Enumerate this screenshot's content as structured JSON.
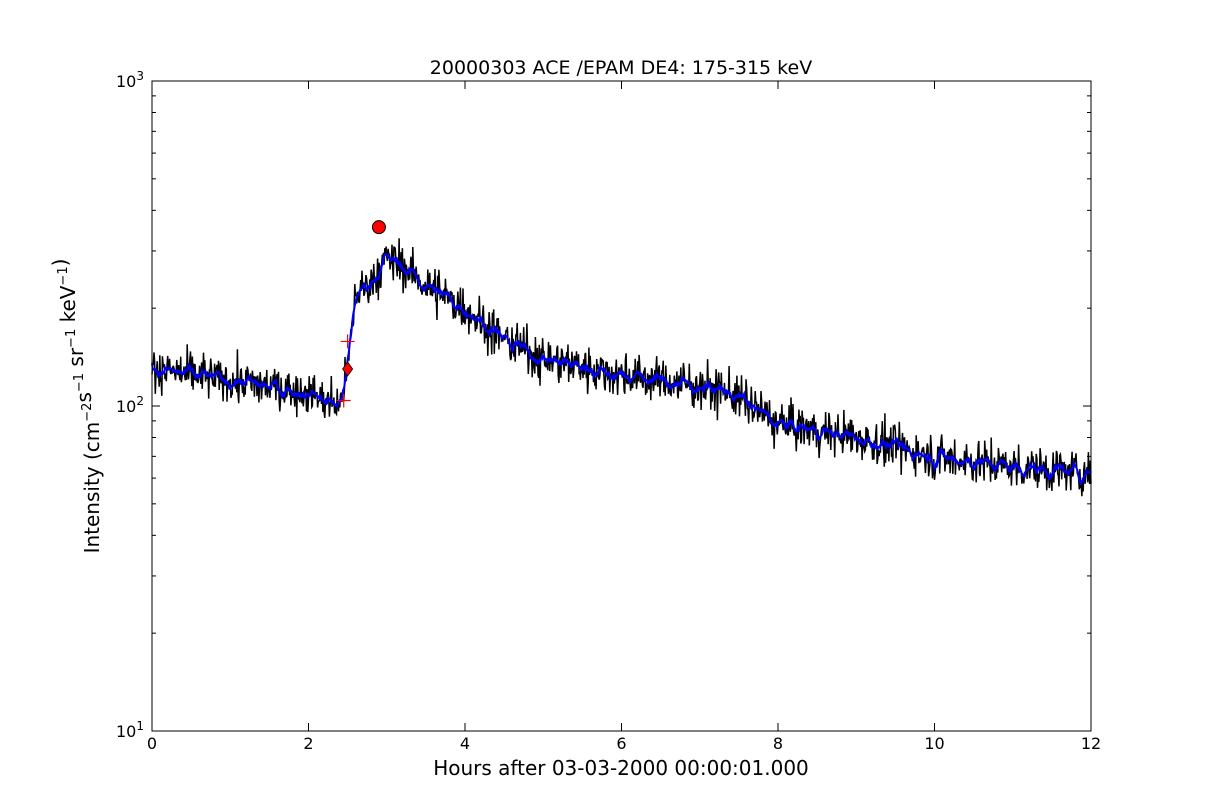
{
  "chart_data": {
    "type": "line",
    "title": "20000303 ACE /EPAM DE4: 175-315 keV",
    "xlabel": "Hours after 03-03-2000 00:00:01.000",
    "ylabel": {
      "prefix": "Intensity (cm",
      "parts": [
        {
          "base": "Intensity (cm",
          "sup": "−2"
        },
        {
          "base": "s",
          "sup": "−1"
        },
        {
          "base": " sr",
          "sup": "−1"
        },
        {
          "base": " keV",
          "sup": "−1"
        }
      ],
      "suffix": ")"
    },
    "xlim": [
      0,
      12
    ],
    "ylim": [
      10,
      1000
    ],
    "yscale": "log",
    "x_ticks": [
      {
        "value": 0,
        "label": "0"
      },
      {
        "value": 2,
        "label": "2"
      },
      {
        "value": 4,
        "label": "4"
      },
      {
        "value": 6,
        "label": "6"
      },
      {
        "value": 8,
        "label": "8"
      },
      {
        "value": 10,
        "label": "10"
      },
      {
        "value": 12,
        "label": "12"
      }
    ],
    "y_ticks": [
      {
        "value": 10,
        "base": "10",
        "exp": "1"
      },
      {
        "value": 100,
        "base": "10",
        "exp": "2"
      },
      {
        "value": 1000,
        "base": "10",
        "exp": "3"
      }
    ],
    "series": [
      {
        "color": "#000000",
        "style": "raw",
        "trend": [
          [
            0,
            130
          ],
          [
            2.0,
            110
          ],
          [
            2.4,
            100
          ],
          [
            2.5,
            130
          ],
          [
            2.6,
            220
          ],
          [
            2.8,
            240
          ],
          [
            3.0,
            285
          ],
          [
            3.2,
            270
          ],
          [
            3.5,
            235
          ],
          [
            4.0,
            200
          ],
          [
            4.5,
            160
          ],
          [
            5.0,
            140
          ],
          [
            6.0,
            125
          ],
          [
            7.0,
            115
          ],
          [
            7.4,
            110
          ],
          [
            8.0,
            88
          ],
          [
            9.0,
            80
          ],
          [
            10.0,
            70
          ],
          [
            11.0,
            65
          ],
          [
            12.0,
            62
          ]
        ]
      },
      {
        "color": "#0000ff",
        "style": "smoothed",
        "trend": [
          [
            0,
            130
          ],
          [
            2.0,
            110
          ],
          [
            2.4,
            100
          ],
          [
            2.5,
            130
          ],
          [
            2.6,
            220
          ],
          [
            2.8,
            240
          ],
          [
            3.0,
            285
          ],
          [
            3.2,
            270
          ],
          [
            3.5,
            235
          ],
          [
            4.0,
            200
          ],
          [
            4.5,
            160
          ],
          [
            5.0,
            140
          ],
          [
            6.0,
            125
          ],
          [
            7.0,
            115
          ],
          [
            7.4,
            110
          ],
          [
            8.0,
            88
          ],
          [
            9.0,
            80
          ],
          [
            10.0,
            70
          ],
          [
            11.0,
            65
          ],
          [
            12.0,
            62
          ]
        ]
      }
    ],
    "markers": [
      {
        "kind": "circle",
        "x": 2.9,
        "y": 355,
        "color": "#ff0000"
      },
      {
        "kind": "diamond",
        "x": 2.5,
        "y": 130,
        "color": "#ff0000"
      },
      {
        "kind": "plus",
        "x": 2.5,
        "y": 158,
        "color": "#ff0000"
      },
      {
        "kind": "plus",
        "x": 2.45,
        "y": 104,
        "color": "#ff0000"
      }
    ],
    "colors": {
      "raw": "#000000",
      "smoothed": "#0000ff",
      "markers": "#ff0000"
    }
  }
}
